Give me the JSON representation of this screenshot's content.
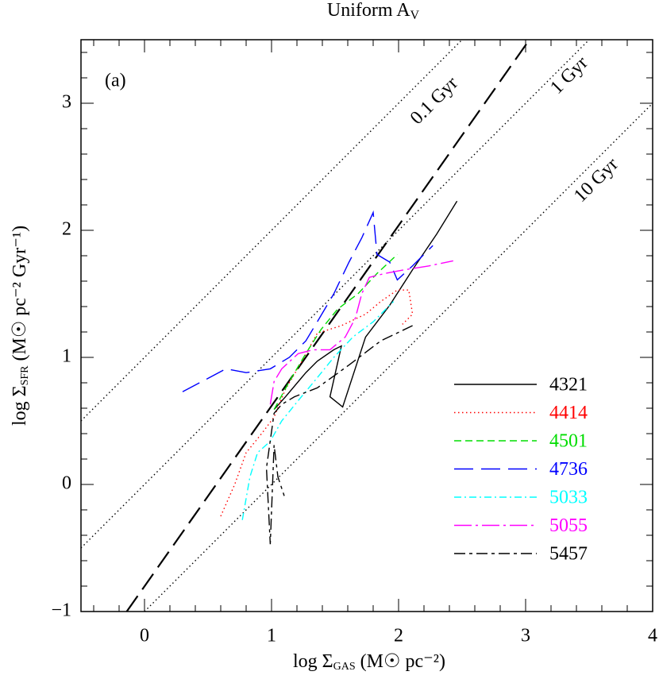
{
  "chart_data": {
    "type": "line",
    "title": {
      "text": "Uniform A",
      "sub": "V"
    },
    "x_label": {
      "pre": "log Σ",
      "sub": "GAS",
      "post": " (M☉ pc⁻²)"
    },
    "y_label": {
      "pre": "log Σ",
      "sub": "SFR",
      "post": " (M☉ pc⁻² Gyr⁻¹)"
    },
    "panel_label": "(a)",
    "xlim": [
      -0.5,
      4
    ],
    "ylim": [
      -1,
      3.5
    ],
    "xticks": [
      0,
      1,
      2,
      3,
      4
    ],
    "yticks": [
      {
        "value": -1,
        "label": "−1"
      },
      0,
      1,
      2,
      3
    ],
    "minor_tick_step": 0.2,
    "legend": "lower right",
    "reference_lines": [
      {
        "label": "0.1 Gyr",
        "style": "dotted",
        "x": [
          -0.5,
          2.5
        ],
        "values": [
          0.5,
          3.5
        ]
      },
      {
        "label": "1 Gyr",
        "style": "dotted",
        "x": [
          -0.5,
          3.5
        ],
        "values": [
          -0.5,
          3.5
        ]
      },
      {
        "label": "10 Gyr",
        "style": "dotted",
        "x": [
          0,
          4
        ],
        "values": [
          -1,
          3
        ]
      },
      {
        "style": "longdash",
        "x": [
          -0.14,
          3.03
        ],
        "values": [
          -1,
          3.5
        ]
      }
    ],
    "series": [
      {
        "name": "4321",
        "color": "#000000",
        "dash": "solid",
        "x": [
          1.02,
          1.11,
          1.27,
          1.36,
          1.49,
          1.55,
          1.46,
          1.56,
          1.74,
          1.93,
          2.11,
          2.3,
          2.46
        ],
        "values": [
          0.59,
          0.69,
          0.88,
          0.97,
          1.06,
          1.09,
          0.69,
          0.61,
          1.16,
          1.41,
          1.69,
          1.97,
          2.23
        ]
      },
      {
        "name": "4414",
        "color": "#ff0000",
        "dash": "dotted",
        "x": [
          0.6,
          0.71,
          0.8,
          0.93,
          1.02,
          1.11,
          1.24,
          1.36,
          1.55,
          1.74,
          1.86,
          1.99,
          2.08,
          2.11,
          2.03
        ],
        "values": [
          -0.25,
          0,
          0.25,
          0.41,
          0.53,
          0.75,
          0.97,
          1.19,
          1.25,
          1.34,
          1.44,
          1.53,
          1.53,
          1.34,
          1.26
        ]
      },
      {
        "name": "4501",
        "color": "#00dd00",
        "dash": "dashed",
        "x": [
          1.02,
          1.14,
          1.27,
          1.39,
          1.52,
          1.68,
          1.83,
          1.99
        ],
        "values": [
          0.59,
          0.81,
          1.03,
          1.22,
          1.38,
          1.5,
          1.66,
          1.81
        ]
      },
      {
        "name": "4736",
        "color": "#0000ff",
        "dash": "longdash",
        "x": [
          0.3,
          0.49,
          0.64,
          0.8,
          0.99,
          1.14,
          1.27,
          1.36,
          1.49,
          1.61,
          1.71,
          1.8,
          1.83,
          1.93,
          1.99,
          2.11,
          2.27
        ],
        "values": [
          0.73,
          0.83,
          0.91,
          0.88,
          0.91,
          1.0,
          1.13,
          1.28,
          1.5,
          1.75,
          1.94,
          2.14,
          1.81,
          1.75,
          1.61,
          1.72,
          1.88
        ]
      },
      {
        "name": "5033",
        "color": "#00ffff",
        "dash": "dashdot",
        "x": [
          0.77,
          0.83,
          0.89,
          0.99,
          1.08,
          1.21,
          1.36,
          1.49,
          1.64,
          1.8,
          1.96
        ],
        "values": [
          -0.28,
          0.06,
          0.25,
          0.34,
          0.5,
          0.66,
          0.84,
          1.0,
          1.16,
          1.28,
          1.44
        ]
      },
      {
        "name": "5055",
        "color": "#ff00ff",
        "dash": "longdashdot",
        "x": [
          0.99,
          1.02,
          1.08,
          1.21,
          1.33,
          1.46,
          1.58,
          1.66,
          1.71,
          1.77,
          1.89,
          2.05,
          2.24,
          2.43
        ],
        "values": [
          0.63,
          0.81,
          0.91,
          1.03,
          1.06,
          1.06,
          1.16,
          1.31,
          1.5,
          1.63,
          1.66,
          1.69,
          1.72,
          1.76
        ]
      },
      {
        "name": "5457",
        "color": "#000000",
        "dash": "shortlong",
        "x": [
          2.11,
          1.86,
          1.61,
          1.36,
          1.18,
          1.08,
          1.02,
          0.96,
          0.99,
          1.02,
          1.05,
          1.1
        ],
        "values": [
          1.25,
          1.13,
          0.94,
          0.76,
          0.69,
          0.63,
          0.56,
          0.13,
          -0.47,
          0.31,
          0.06,
          -0.09
        ]
      }
    ]
  }
}
